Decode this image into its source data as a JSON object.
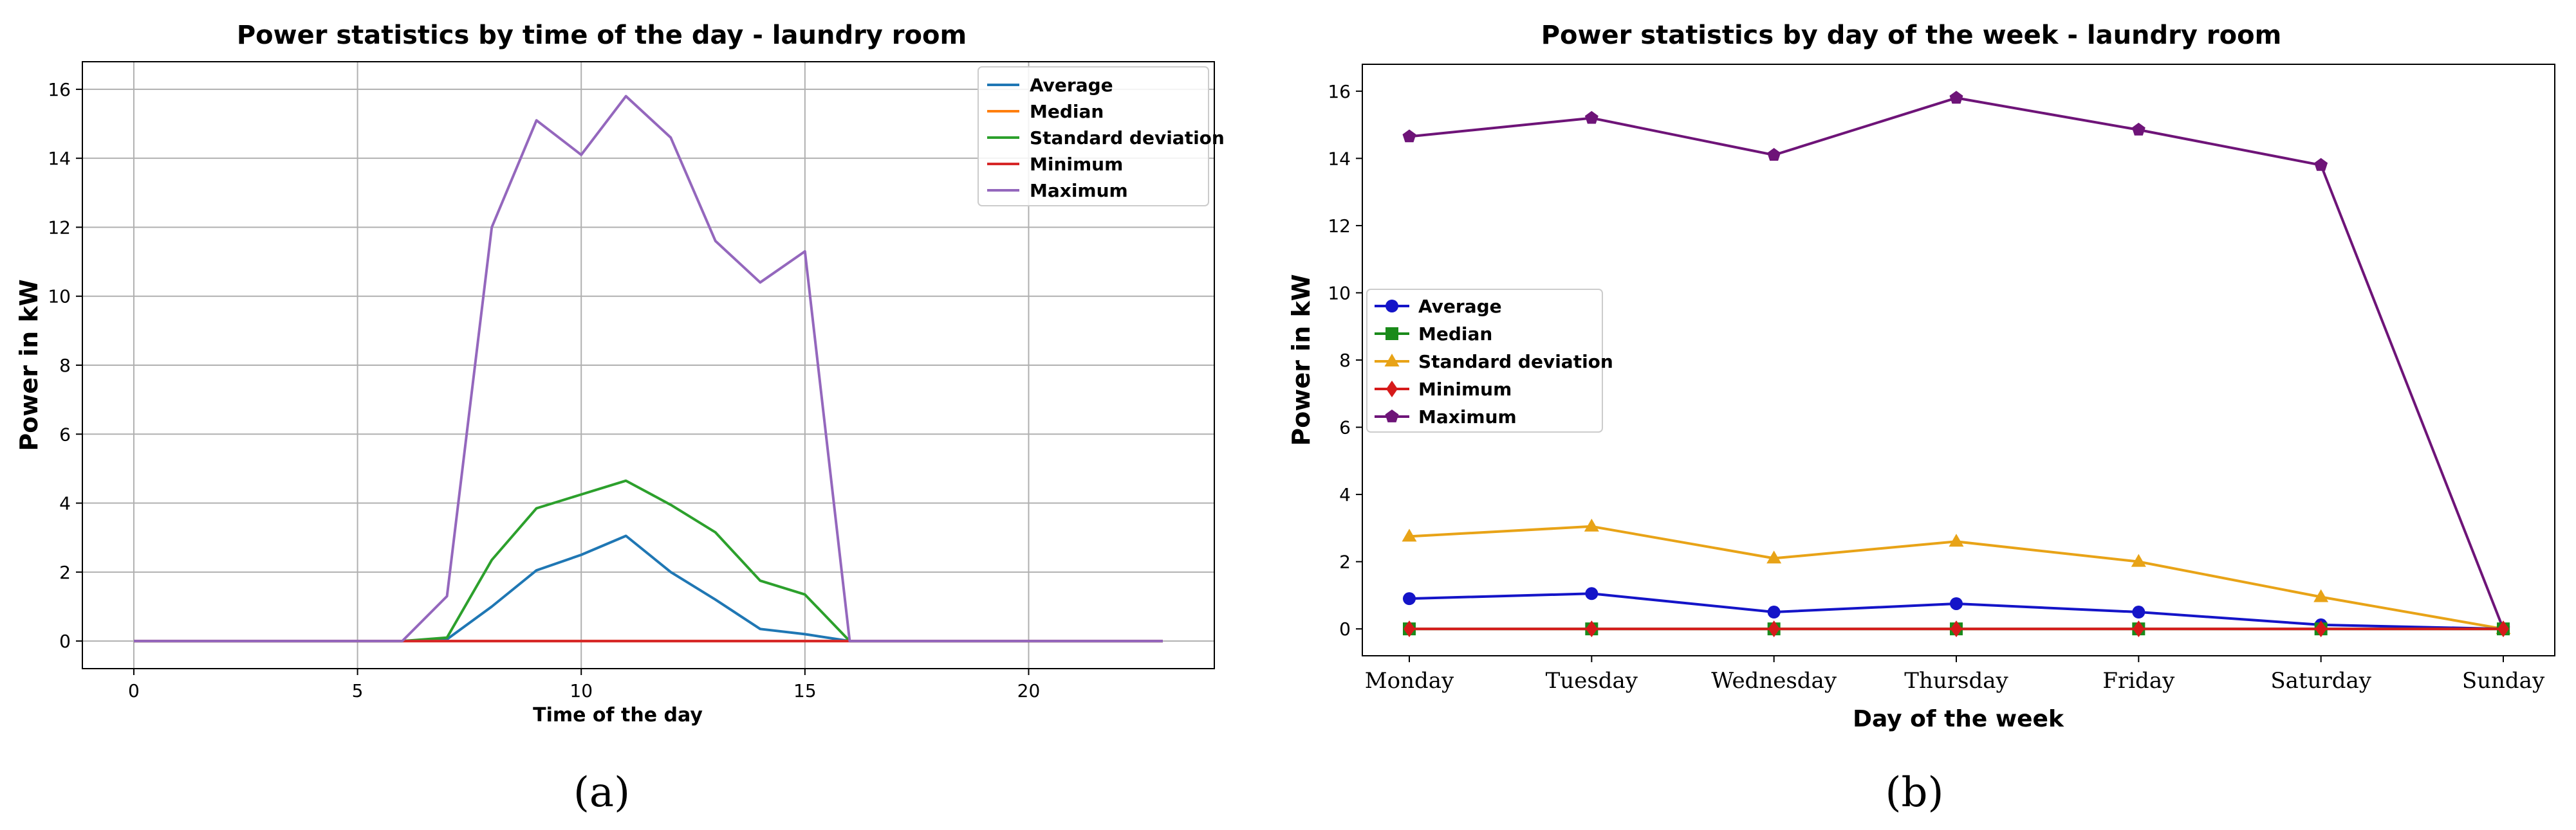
{
  "chart_data": [
    {
      "type": "line",
      "title": "Power statistics by time of the day - laundry room",
      "xlabel": "Time of the day",
      "ylabel": "Power in kW",
      "xlim": [
        -1.15,
        24.15
      ],
      "ylim": [
        -0.8,
        16.8
      ],
      "xticks": [
        0,
        5,
        10,
        15,
        20
      ],
      "yticks": [
        0,
        2,
        4,
        6,
        8,
        10,
        12,
        14,
        16
      ],
      "grid": true,
      "legend_position": "top-right",
      "x": [
        0,
        1,
        2,
        3,
        4,
        5,
        6,
        7,
        8,
        9,
        10,
        11,
        12,
        13,
        14,
        15,
        16,
        17,
        18,
        19,
        20,
        21,
        22,
        23
      ],
      "series": [
        {
          "name": "Average",
          "color": "#1f77b4",
          "values": [
            0,
            0,
            0,
            0,
            0,
            0,
            0,
            0.05,
            1.0,
            2.05,
            2.5,
            3.05,
            2.0,
            1.2,
            0.35,
            0.2,
            0,
            0,
            0,
            0,
            0,
            0,
            0,
            0
          ]
        },
        {
          "name": "Median",
          "color": "#ff7f0e",
          "values": [
            0,
            0,
            0,
            0,
            0,
            0,
            0,
            0,
            0,
            0,
            0,
            0,
            0,
            0,
            0,
            0,
            0,
            0,
            0,
            0,
            0,
            0,
            0,
            0
          ]
        },
        {
          "name": "Standard deviation",
          "color": "#2ca02c",
          "values": [
            0,
            0,
            0,
            0,
            0,
            0,
            0,
            0.1,
            2.35,
            3.85,
            4.25,
            4.65,
            3.95,
            3.15,
            1.75,
            1.35,
            0,
            0,
            0,
            0,
            0,
            0,
            0,
            0
          ]
        },
        {
          "name": "Minimum",
          "color": "#d62728",
          "values": [
            0,
            0,
            0,
            0,
            0,
            0,
            0,
            0,
            0,
            0,
            0,
            0,
            0,
            0,
            0,
            0,
            0,
            0,
            0,
            0,
            0,
            0,
            0,
            0
          ]
        },
        {
          "name": "Maximum",
          "color": "#9467bd",
          "values": [
            0,
            0,
            0,
            0,
            0,
            0,
            0,
            1.3,
            12.0,
            15.1,
            14.1,
            15.8,
            14.6,
            11.6,
            10.4,
            11.3,
            0,
            0,
            0,
            0,
            0,
            0,
            0,
            0
          ]
        }
      ]
    },
    {
      "type": "line",
      "title": "Power statistics by day of the week - laundry room",
      "xlabel": "Day of the week",
      "ylabel": "Power in kW",
      "categories": [
        "Monday",
        "Tuesday",
        "Wednesday",
        "Thursday",
        "Friday",
        "Saturday",
        "Sunday"
      ],
      "ylim": [
        -0.8,
        16.8
      ],
      "yticks": [
        0,
        2,
        4,
        6,
        8,
        10,
        12,
        14,
        16
      ],
      "grid": false,
      "legend_position": "center-left",
      "series": [
        {
          "name": "Average",
          "color": "#1414c8",
          "marker": "circle",
          "values": [
            0.9,
            1.05,
            0.5,
            0.75,
            0.5,
            0.12,
            0.0
          ]
        },
        {
          "name": "Median",
          "color": "#1a8a1a",
          "marker": "square",
          "values": [
            0.0,
            0.0,
            0.0,
            0.0,
            0.0,
            0.0,
            0.0
          ]
        },
        {
          "name": "Standard deviation",
          "color": "#e8a317",
          "marker": "triangle",
          "values": [
            2.75,
            3.05,
            2.1,
            2.6,
            2.0,
            0.95,
            0.0
          ]
        },
        {
          "name": "Minimum",
          "color": "#d61a1a",
          "marker": "diamond",
          "values": [
            0.0,
            0.0,
            0.0,
            0.0,
            0.0,
            0.0,
            0.0
          ]
        },
        {
          "name": "Maximum",
          "color": "#6e1478",
          "marker": "pentagon",
          "values": [
            14.65,
            15.2,
            14.1,
            15.8,
            14.85,
            13.8,
            0.0
          ]
        }
      ]
    }
  ],
  "panel_labels": [
    "(a)",
    "(b)"
  ]
}
